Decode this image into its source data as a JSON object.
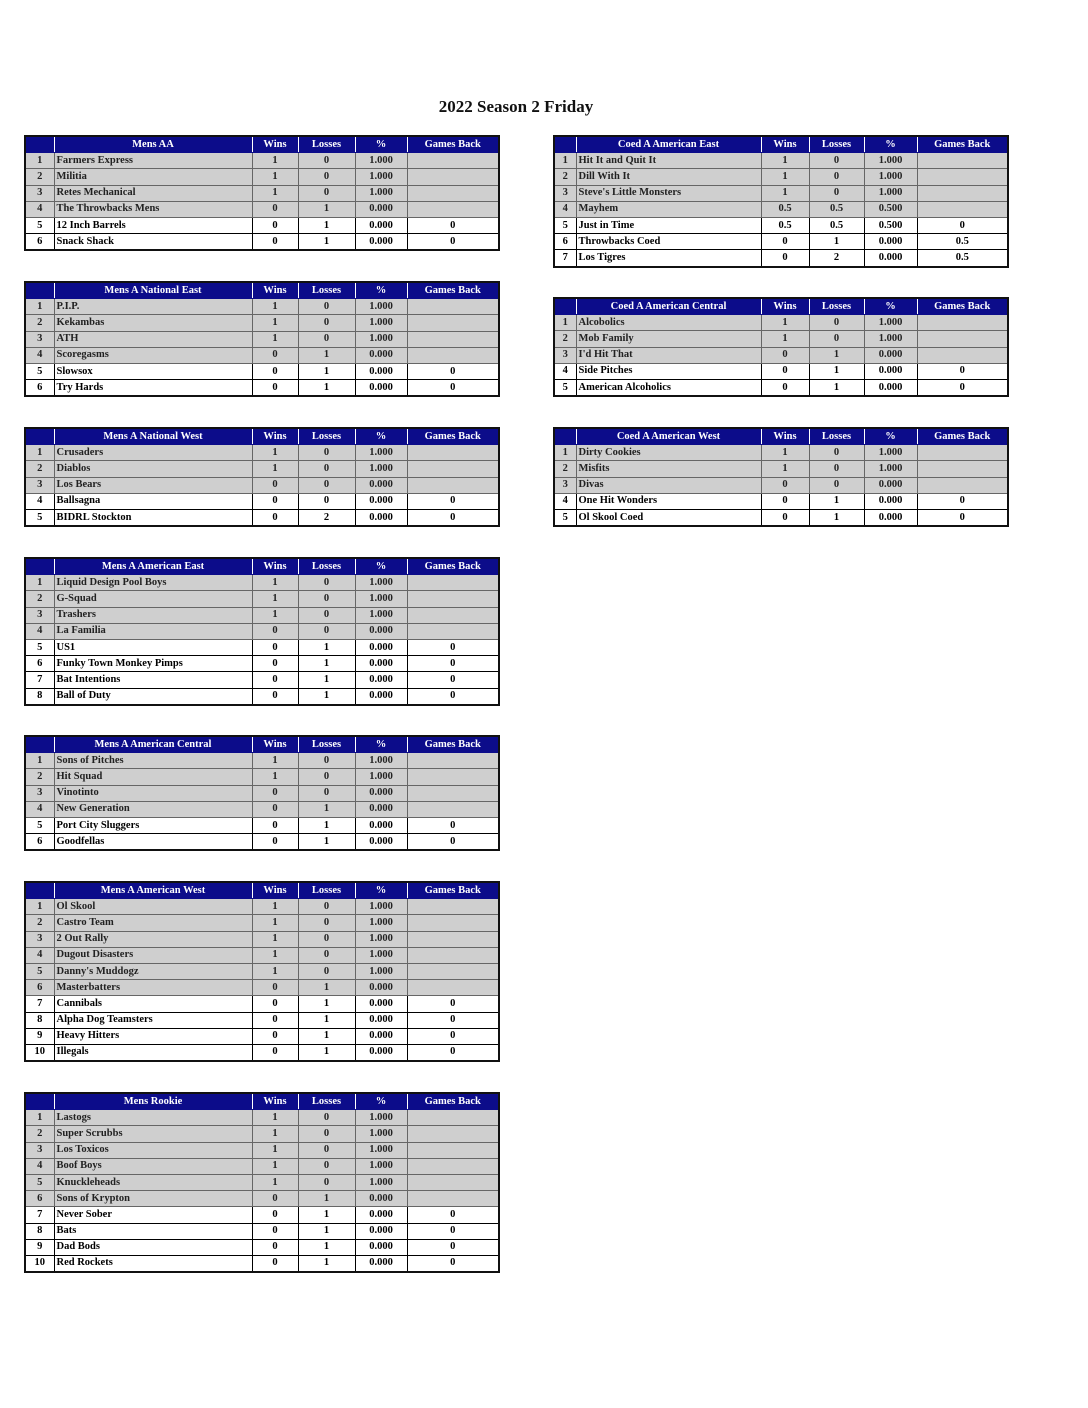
{
  "title": "2022 Season 2 Friday",
  "columns": [
    "Wins",
    "Losses",
    "%",
    "Games Back"
  ],
  "colors": {
    "header_bg": "#0c0c8a",
    "header_text": "#ffffff",
    "leader_row_bg": "#cfcfcf",
    "trailing_row_bg": "#ffffff"
  },
  "divisions": [
    {
      "name": "Mens AA",
      "rows": [
        [
          "1",
          "Farmers Express",
          "1",
          "0",
          "1.000",
          ""
        ],
        [
          "2",
          "Militia",
          "1",
          "0",
          "1.000",
          ""
        ],
        [
          "3",
          "Retes Mechanical",
          "1",
          "0",
          "1.000",
          ""
        ],
        [
          "4",
          "The Throwbacks Mens",
          "0",
          "1",
          "0.000",
          ""
        ],
        [
          "5",
          "12 Inch Barrels",
          "0",
          "1",
          "0.000",
          "0"
        ],
        [
          "6",
          "Snack Shack",
          "0",
          "1",
          "0.000",
          "0"
        ]
      ]
    },
    {
      "name": "Mens A National East",
      "rows": [
        [
          "1",
          "P.I.P.",
          "1",
          "0",
          "1.000",
          ""
        ],
        [
          "2",
          "Kekambas",
          "1",
          "0",
          "1.000",
          ""
        ],
        [
          "3",
          "ATH",
          "1",
          "0",
          "1.000",
          ""
        ],
        [
          "4",
          "Scoregasms",
          "0",
          "1",
          "0.000",
          ""
        ],
        [
          "5",
          "Slowsox",
          "0",
          "1",
          "0.000",
          "0"
        ],
        [
          "6",
          "Try Hards",
          "0",
          "1",
          "0.000",
          "0"
        ]
      ]
    },
    {
      "name": "Mens A National West",
      "rows": [
        [
          "1",
          "Crusaders",
          "1",
          "0",
          "1.000",
          ""
        ],
        [
          "2",
          "Diablos",
          "1",
          "0",
          "1.000",
          ""
        ],
        [
          "3",
          "Los Bears",
          "0",
          "0",
          "0.000",
          ""
        ],
        [
          "4",
          "Ballsagna",
          "0",
          "0",
          "0.000",
          "0"
        ],
        [
          "5",
          "BIDRL Stockton",
          "0",
          "2",
          "0.000",
          "0"
        ]
      ]
    },
    {
      "name": "Mens A American East",
      "rows": [
        [
          "1",
          "Liquid Design Pool Boys",
          "1",
          "0",
          "1.000",
          ""
        ],
        [
          "2",
          "G-Squad",
          "1",
          "0",
          "1.000",
          ""
        ],
        [
          "3",
          "Trashers",
          "1",
          "0",
          "1.000",
          ""
        ],
        [
          "4",
          "La Familia",
          "0",
          "0",
          "0.000",
          ""
        ],
        [
          "5",
          "US1",
          "0",
          "1",
          "0.000",
          "0"
        ],
        [
          "6",
          "Funky Town Monkey Pimps",
          "0",
          "1",
          "0.000",
          "0"
        ],
        [
          "7",
          "Bat Intentions",
          "0",
          "1",
          "0.000",
          "0"
        ],
        [
          "8",
          "Ball of Duty",
          "0",
          "1",
          "0.000",
          "0"
        ]
      ]
    },
    {
      "name": "Mens A American Central",
      "rows": [
        [
          "1",
          "Sons of Pitches",
          "1",
          "0",
          "1.000",
          ""
        ],
        [
          "2",
          "Hit Squad",
          "1",
          "0",
          "1.000",
          ""
        ],
        [
          "3",
          "Vinotinto",
          "0",
          "0",
          "0.000",
          ""
        ],
        [
          "4",
          "New Generation",
          "0",
          "1",
          "0.000",
          ""
        ],
        [
          "5",
          "Port City Sluggers",
          "0",
          "1",
          "0.000",
          "0"
        ],
        [
          "6",
          "Goodfellas",
          "0",
          "1",
          "0.000",
          "0"
        ]
      ]
    },
    {
      "name": "Mens A American West",
      "rows": [
        [
          "1",
          "Ol Skool",
          "1",
          "0",
          "1.000",
          ""
        ],
        [
          "2",
          "Castro Team",
          "1",
          "0",
          "1.000",
          ""
        ],
        [
          "3",
          "2 Out Rally",
          "1",
          "0",
          "1.000",
          ""
        ],
        [
          "4",
          "Dugout Disasters",
          "1",
          "0",
          "1.000",
          ""
        ],
        [
          "5",
          "Danny's Muddogz",
          "1",
          "0",
          "1.000",
          ""
        ],
        [
          "6",
          "Masterbatters",
          "0",
          "1",
          "0.000",
          ""
        ],
        [
          "7",
          "Cannibals",
          "0",
          "1",
          "0.000",
          "0"
        ],
        [
          "8",
          "Alpha Dog Teamsters",
          "0",
          "1",
          "0.000",
          "0"
        ],
        [
          "9",
          "Heavy Hitters",
          "0",
          "1",
          "0.000",
          "0"
        ],
        [
          "10",
          "Illegals",
          "0",
          "1",
          "0.000",
          "0"
        ]
      ]
    },
    {
      "name": "Mens Rookie",
      "rows": [
        [
          "1",
          "Lastogs",
          "1",
          "0",
          "1.000",
          ""
        ],
        [
          "2",
          "Super Scrubbs",
          "1",
          "0",
          "1.000",
          ""
        ],
        [
          "3",
          "Los Toxicos",
          "1",
          "0",
          "1.000",
          ""
        ],
        [
          "4",
          "Boof Boys",
          "1",
          "0",
          "1.000",
          ""
        ],
        [
          "5",
          "Knuckleheads",
          "1",
          "0",
          "1.000",
          ""
        ],
        [
          "6",
          "Sons of Krypton",
          "0",
          "1",
          "0.000",
          ""
        ],
        [
          "7",
          "Never Sober",
          "0",
          "1",
          "0.000",
          "0"
        ],
        [
          "8",
          "Bats",
          "0",
          "1",
          "0.000",
          "0"
        ],
        [
          "9",
          "Dad Bods",
          "0",
          "1",
          "0.000",
          "0"
        ],
        [
          "10",
          "Red Rockets",
          "0",
          "1",
          "0.000",
          "0"
        ]
      ]
    },
    {
      "name": "Coed A American East",
      "rows": [
        [
          "1",
          "Hit It and Quit It",
          "1",
          "0",
          "1.000",
          ""
        ],
        [
          "2",
          "Dill With It",
          "1",
          "0",
          "1.000",
          ""
        ],
        [
          "3",
          "Steve's Little Monsters",
          "1",
          "0",
          "1.000",
          ""
        ],
        [
          "4",
          "Mayhem",
          "0.5",
          "0.5",
          "0.500",
          ""
        ],
        [
          "5",
          "Just in Time",
          "0.5",
          "0.5",
          "0.500",
          "0"
        ],
        [
          "6",
          "Throwbacks Coed",
          "0",
          "1",
          "0.000",
          "0.5"
        ],
        [
          "7",
          "Los Tigres",
          "0",
          "2",
          "0.000",
          "0.5"
        ]
      ]
    },
    {
      "name": "Coed A American Central",
      "rows": [
        [
          "1",
          "Alcobolics",
          "1",
          "0",
          "1.000",
          ""
        ],
        [
          "2",
          "Mob Family",
          "1",
          "0",
          "1.000",
          ""
        ],
        [
          "3",
          "I'd Hit That",
          "0",
          "1",
          "0.000",
          ""
        ],
        [
          "4",
          "Side Pitches",
          "0",
          "1",
          "0.000",
          "0"
        ],
        [
          "5",
          "American Alcoholics",
          "0",
          "1",
          "0.000",
          "0"
        ]
      ]
    },
    {
      "name": "Coed A American West",
      "rows": [
        [
          "1",
          "Dirty Cookies",
          "1",
          "0",
          "1.000",
          ""
        ],
        [
          "2",
          "Misfits",
          "1",
          "0",
          "1.000",
          ""
        ],
        [
          "3",
          "Divas",
          "0",
          "0",
          "0.000",
          ""
        ],
        [
          "4",
          "One Hit Wonders",
          "0",
          "1",
          "0.000",
          "0"
        ],
        [
          "5",
          "Ol Skool Coed",
          "0",
          "1",
          "0.000",
          "0"
        ]
      ]
    }
  ]
}
